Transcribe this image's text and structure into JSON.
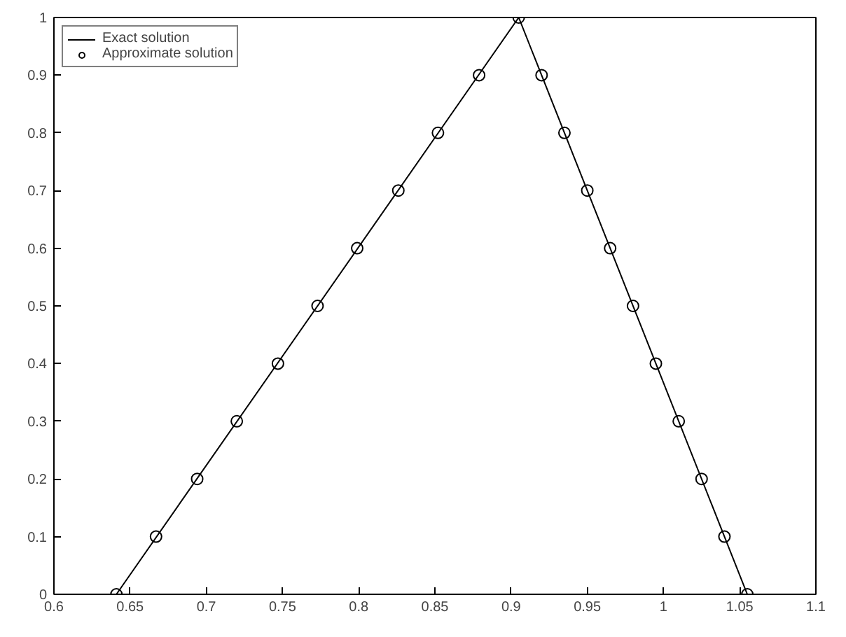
{
  "chart_data": {
    "type": "line",
    "legend": "top left",
    "grid": false,
    "xlim": [
      0.6,
      1.1
    ],
    "ylim": [
      0,
      1
    ],
    "xticks": [
      0.6,
      0.65,
      0.7,
      0.75,
      0.8,
      0.85,
      0.9,
      0.95,
      1,
      1.05,
      1.1
    ],
    "yticks": [
      0,
      0.1,
      0.2,
      0.3,
      0.4,
      0.5,
      0.6,
      0.7,
      0.8,
      0.9,
      1
    ],
    "series": [
      {
        "name": "Exact solution",
        "color": "#000000",
        "marker": "none",
        "line_style": "solid",
        "x": [
          0.641,
          0.905,
          1.055
        ],
        "values": [
          0,
          1,
          0
        ]
      },
      {
        "name": "Approximate solution",
        "color": "#000000",
        "type": "scatter",
        "marker": "circle",
        "x": [
          0.641,
          0.667,
          0.694,
          0.72,
          0.747,
          0.773,
          0.799,
          0.826,
          0.852,
          0.879,
          0.905,
          0.92,
          0.935,
          0.95,
          0.965,
          0.98,
          0.995,
          1.01,
          1.025,
          1.04,
          1.055
        ],
        "values": [
          0,
          0.1,
          0.2,
          0.3,
          0.4,
          0.5,
          0.6,
          0.7,
          0.8,
          0.9,
          1,
          0.9,
          0.8,
          0.7,
          0.6,
          0.5,
          0.4,
          0.3,
          0.2,
          0.1,
          0
        ]
      }
    ]
  }
}
